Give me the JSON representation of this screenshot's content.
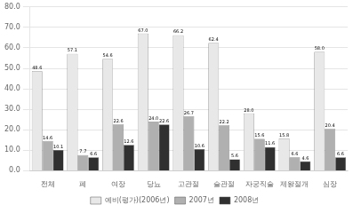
{
  "chart_data": {
    "type": "bar",
    "categories": [
      "전체",
      "폐",
      "여장",
      "당뇨",
      "고관절",
      "슬관절",
      "자궁직술",
      "제왕절개",
      "심장"
    ],
    "series": [
      {
        "name": "예비(평가)(2006년)",
        "color": "#e8e8e8",
        "values": [
          48.6,
          57.1,
          54.6,
          67.0,
          66.2,
          62.4,
          28.0,
          15.8,
          58.0
        ],
        "value_labels": [
          "48.6",
          "57.1",
          "54.6",
          "67.0",
          "66.2",
          "62.4",
          "28.0",
          "15.8",
          "58.0"
        ]
      },
      {
        "name": "2007년",
        "color": "#b0b0b0",
        "values": [
          14.6,
          7.7,
          22.6,
          24.0,
          26.7,
          22.2,
          15.6,
          6.6,
          20.4
        ],
        "value_labels": [
          "14.6",
          "7.7",
          "22.6",
          "24.0",
          "26.7",
          "22.2",
          "15.6",
          "6.6",
          "20.4"
        ]
      },
      {
        "name": "2008년",
        "color": "#303030",
        "values": [
          10.1,
          6.6,
          12.6,
          22.6,
          10.6,
          5.6,
          11.6,
          4.6,
          6.6
        ],
        "value_labels": [
          "10.1",
          "6.6",
          "12.6",
          "22.6",
          "10.6",
          "5.6",
          "11.6",
          "4.6",
          "6.6"
        ]
      }
    ],
    "ylim": [
      0,
      80
    ],
    "yticks": [
      {
        "value": 0,
        "label": "0.0"
      },
      {
        "value": 10,
        "label": "10.0"
      },
      {
        "value": 20,
        "label": "20.0"
      },
      {
        "value": 30,
        "label": "30.0"
      },
      {
        "value": 40,
        "label": "40.0"
      },
      {
        "value": 50,
        "label": "50.0"
      },
      {
        "value": 60,
        "label": "60.0"
      },
      {
        "value": 70,
        "label": "70.0"
      },
      {
        "value": 80,
        "label": "80.0"
      }
    ],
    "grid": true,
    "legend": "bottom",
    "data_labels": true
  }
}
